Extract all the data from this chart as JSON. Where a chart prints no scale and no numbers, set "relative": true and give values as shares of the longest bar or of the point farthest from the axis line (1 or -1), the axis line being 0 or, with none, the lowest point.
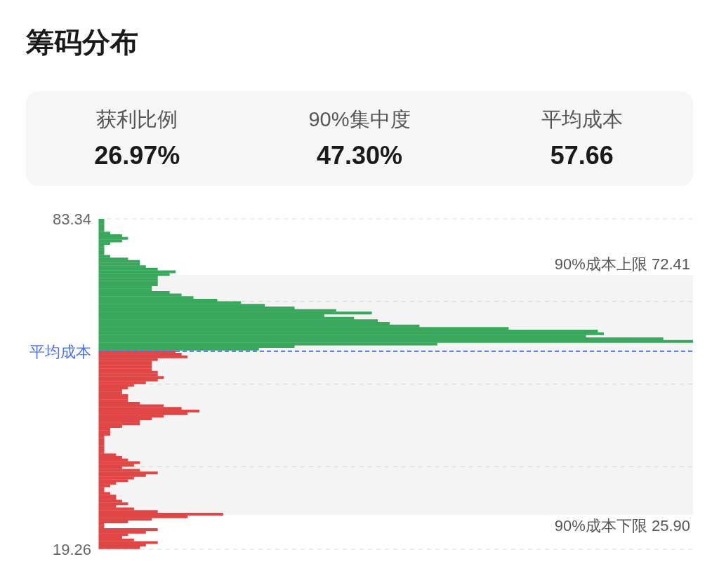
{
  "chart_data": [
    {
      "type": "other",
      "title": "筹码分布",
      "categories": [
        "获利比例",
        "90%集中度",
        "平均成本"
      ],
      "value_labels": [
        "26.97%",
        "47.30%",
        "57.66"
      ]
    },
    {
      "type": "bar",
      "orientation": "horizontal",
      "relative": true,
      "x": [
        19.59,
        20.09,
        20.59,
        21.09,
        21.59,
        22.09,
        22.59,
        23.09,
        23.59,
        24.09,
        24.59,
        25.09,
        25.59,
        26.09,
        26.59,
        27.09,
        27.59,
        28.09,
        28.59,
        29.09,
        29.59,
        30.09,
        30.59,
        31.09,
        31.59,
        32.09,
        32.59,
        33.09,
        33.59,
        34.09,
        34.59,
        35.09,
        35.59,
        36.09,
        36.59,
        37.09,
        37.59,
        38.09,
        38.59,
        39.09,
        39.59,
        40.09,
        40.59,
        41.09,
        41.59,
        42.09,
        42.59,
        43.09,
        43.59,
        44.09,
        44.59,
        45.09,
        45.59,
        46.09,
        46.59,
        47.09,
        47.59,
        48.09,
        48.59,
        49.09,
        49.59,
        50.09,
        50.59,
        51.09,
        51.59,
        52.09,
        52.59,
        53.09,
        53.59,
        54.09,
        54.59,
        55.09,
        55.59,
        56.09,
        56.59,
        57.09,
        57.59,
        58.09,
        58.59,
        59.09,
        59.59,
        60.09,
        60.59,
        61.09,
        61.59,
        62.09,
        62.59,
        63.09,
        63.59,
        64.09,
        64.59,
        65.09,
        65.59,
        66.09,
        66.59,
        67.09,
        67.59,
        68.09,
        68.59,
        69.09,
        69.59,
        70.09,
        70.59,
        71.09,
        71.59,
        72.09,
        72.59,
        73.09,
        73.59,
        74.09,
        74.59,
        75.09,
        75.59,
        76.09,
        76.59,
        77.09,
        77.59,
        78.09,
        78.59,
        79.09,
        79.59,
        80.09,
        80.59,
        81.09,
        81.59,
        82.09,
        82.59,
        83.09
      ],
      "values": [
        0.07,
        0.08,
        0.1,
        0.06,
        0.04,
        0.05,
        0.08,
        0.1,
        0.01,
        0.01,
        0.05,
        0.09,
        0.15,
        0.21,
        0.1,
        0.06,
        0.03,
        0.05,
        0.04,
        0.03,
        0.03,
        0.02,
        0.01,
        0.01,
        0.02,
        0.03,
        0.05,
        0.06,
        0.08,
        0.1,
        0.07,
        0.04,
        0.06,
        0.07,
        0.05,
        0.04,
        0.03,
        0.01,
        0.01,
        0.01,
        0.01,
        0.01,
        0.01,
        0.01,
        0.02,
        0.02,
        0.02,
        0.04,
        0.07,
        0.07,
        0.09,
        0.11,
        0.15,
        0.17,
        0.14,
        0.11,
        0.07,
        0.05,
        0.05,
        0.05,
        0.04,
        0.04,
        0.05,
        0.06,
        0.08,
        0.1,
        0.11,
        0.1,
        0.1,
        0.09,
        0.09,
        0.09,
        0.09,
        0.1,
        0.15,
        0.14,
        0.13,
        0.27,
        0.33,
        0.57,
        1,
        0.95,
        0.82,
        0.85,
        0.84,
        0.69,
        0.54,
        0.49,
        0.47,
        0.43,
        0.38,
        0.46,
        0.4,
        0.33,
        0.28,
        0.24,
        0.2,
        0.16,
        0.14,
        0.12,
        0.09,
        0.09,
        0.1,
        0.1,
        0.1,
        0.1,
        0.12,
        0.13,
        0.1,
        0.08,
        0.07,
        0.07,
        0.05,
        0.02,
        0.01,
        0.01,
        0.01,
        0.01,
        0.02,
        0.04,
        0.05,
        0.04,
        0.02,
        0.01,
        0.01,
        0.01,
        0.01,
        0.01
      ],
      "colors": [
        "#e04646",
        "#e04646",
        "#e04646",
        "#e04646",
        "#e04646",
        "#e04646",
        "#e04646",
        "#e04646",
        "#e04646",
        "#e04646",
        "#e04646",
        "#e04646",
        "#e04646",
        "#e04646",
        "#e04646",
        "#e04646",
        "#e04646",
        "#e04646",
        "#e04646",
        "#e04646",
        "#e04646",
        "#e04646",
        "#e04646",
        "#e04646",
        "#e04646",
        "#e04646",
        "#e04646",
        "#e04646",
        "#e04646",
        "#e04646",
        "#e04646",
        "#e04646",
        "#e04646",
        "#e04646",
        "#e04646",
        "#e04646",
        "#e04646",
        "#e04646",
        "#e04646",
        "#e04646",
        "#e04646",
        "#e04646",
        "#e04646",
        "#e04646",
        "#e04646",
        "#e04646",
        "#e04646",
        "#e04646",
        "#e04646",
        "#e04646",
        "#e04646",
        "#e04646",
        "#e04646",
        "#e04646",
        "#e04646",
        "#e04646",
        "#e04646",
        "#e04646",
        "#e04646",
        "#e04646",
        "#e04646",
        "#e04646",
        "#e04646",
        "#e04646",
        "#e04646",
        "#e04646",
        "#e04646",
        "#e04646",
        "#e04646",
        "#e04646",
        "#e04646",
        "#e04646",
        "#e04646",
        "#e04646",
        "#e04646",
        "#e04646",
        "#e04646",
        "#3aa85c",
        "#3aa85c",
        "#3aa85c",
        "#3aa85c",
        "#3aa85c",
        "#3aa85c",
        "#3aa85c",
        "#3aa85c",
        "#3aa85c",
        "#3aa85c",
        "#3aa85c",
        "#3aa85c",
        "#3aa85c",
        "#3aa85c",
        "#3aa85c",
        "#3aa85c",
        "#3aa85c",
        "#3aa85c",
        "#3aa85c",
        "#3aa85c",
        "#3aa85c",
        "#3aa85c",
        "#3aa85c",
        "#3aa85c",
        "#3aa85c",
        "#3aa85c",
        "#3aa85c",
        "#3aa85c",
        "#3aa85c",
        "#3aa85c",
        "#3aa85c",
        "#3aa85c",
        "#3aa85c",
        "#3aa85c",
        "#3aa85c",
        "#3aa85c",
        "#3aa85c",
        "#3aa85c",
        "#3aa85c",
        "#3aa85c",
        "#3aa85c",
        "#3aa85c",
        "#3aa85c",
        "#3aa85c",
        "#3aa85c",
        "#3aa85c",
        "#3aa85c",
        "#3aa85c",
        "#3aa85c",
        "#3aa85c",
        "#3aa85c"
      ],
      "ylim": [
        19.26,
        83.34
      ],
      "yticks": [
        19.26,
        {
          "value": 35.28,
          "label": null
        },
        {
          "value": 51.3,
          "label": null
        },
        {
          "value": 67.32,
          "label": null
        },
        83.34
      ],
      "grid": "y",
      "ref_lines": [
        {
          "axis": "y",
          "value": 57.66,
          "label": "平均成本",
          "color": "#4a72e8",
          "line_style": "dashed"
        }
      ],
      "bands": [
        {
          "axis": "y",
          "from": 25.9,
          "to": 72.41,
          "color": "#f4f4f4"
        }
      ],
      "annotations": [
        {
          "text": "90%成本上限 72.41",
          "y": 72.41
        },
        {
          "text": "90%成本下限 25.90",
          "y": 25.9
        }
      ]
    }
  ]
}
